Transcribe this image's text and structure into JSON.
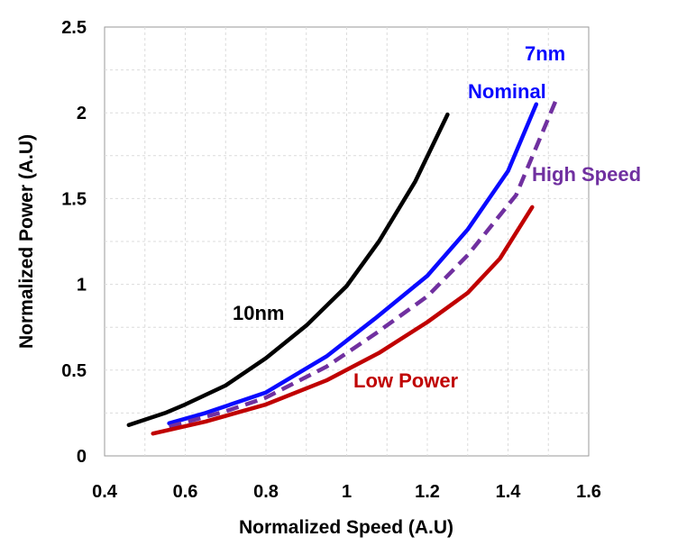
{
  "chart_data": {
    "type": "line",
    "xlabel": "Normalized Speed (A.U)",
    "ylabel": "Normalized Power (A.U)",
    "xlim": [
      0.4,
      1.6
    ],
    "ylim": [
      0,
      2.5
    ],
    "xticks": [
      "0.4",
      "0.6",
      "0.8",
      "1",
      "1.2",
      "1.4",
      "1.6"
    ],
    "yticks": [
      "0",
      "0.5",
      "1",
      "1.5",
      "2",
      "2.5"
    ],
    "grid": true,
    "legend": "none",
    "annotations": {
      "node_7nm": "7nm"
    },
    "series": [
      {
        "name": "10nm",
        "color": "#000000",
        "style": "solid",
        "points": [
          [
            0.46,
            0.18
          ],
          [
            0.55,
            0.25
          ],
          [
            0.6,
            0.3
          ],
          [
            0.7,
            0.41
          ],
          [
            0.8,
            0.57
          ],
          [
            0.9,
            0.76
          ],
          [
            1.0,
            0.99
          ],
          [
            1.08,
            1.25
          ],
          [
            1.17,
            1.6
          ],
          [
            1.25,
            1.99
          ]
        ]
      },
      {
        "name": "Nominal",
        "color": "#0a0aff",
        "style": "solid",
        "points": [
          [
            0.56,
            0.19
          ],
          [
            0.65,
            0.25
          ],
          [
            0.8,
            0.37
          ],
          [
            0.95,
            0.58
          ],
          [
            1.07,
            0.8
          ],
          [
            1.2,
            1.05
          ],
          [
            1.3,
            1.32
          ],
          [
            1.4,
            1.66
          ],
          [
            1.47,
            2.05
          ]
        ]
      },
      {
        "name": "High Speed",
        "color": "#7030a0",
        "style": "dashed",
        "points": [
          [
            0.56,
            0.17
          ],
          [
            0.7,
            0.26
          ],
          [
            0.8,
            0.34
          ],
          [
            0.95,
            0.52
          ],
          [
            1.07,
            0.71
          ],
          [
            1.2,
            0.93
          ],
          [
            1.3,
            1.17
          ],
          [
            1.42,
            1.52
          ],
          [
            1.52,
            2.08
          ]
        ]
      },
      {
        "name": "Low Power",
        "color": "#c00000",
        "style": "solid",
        "points": [
          [
            0.52,
            0.13
          ],
          [
            0.65,
            0.2
          ],
          [
            0.8,
            0.3
          ],
          [
            0.95,
            0.44
          ],
          [
            1.08,
            0.6
          ],
          [
            1.2,
            0.78
          ],
          [
            1.3,
            0.95
          ],
          [
            1.38,
            1.15
          ],
          [
            1.46,
            1.45
          ]
        ]
      }
    ]
  }
}
